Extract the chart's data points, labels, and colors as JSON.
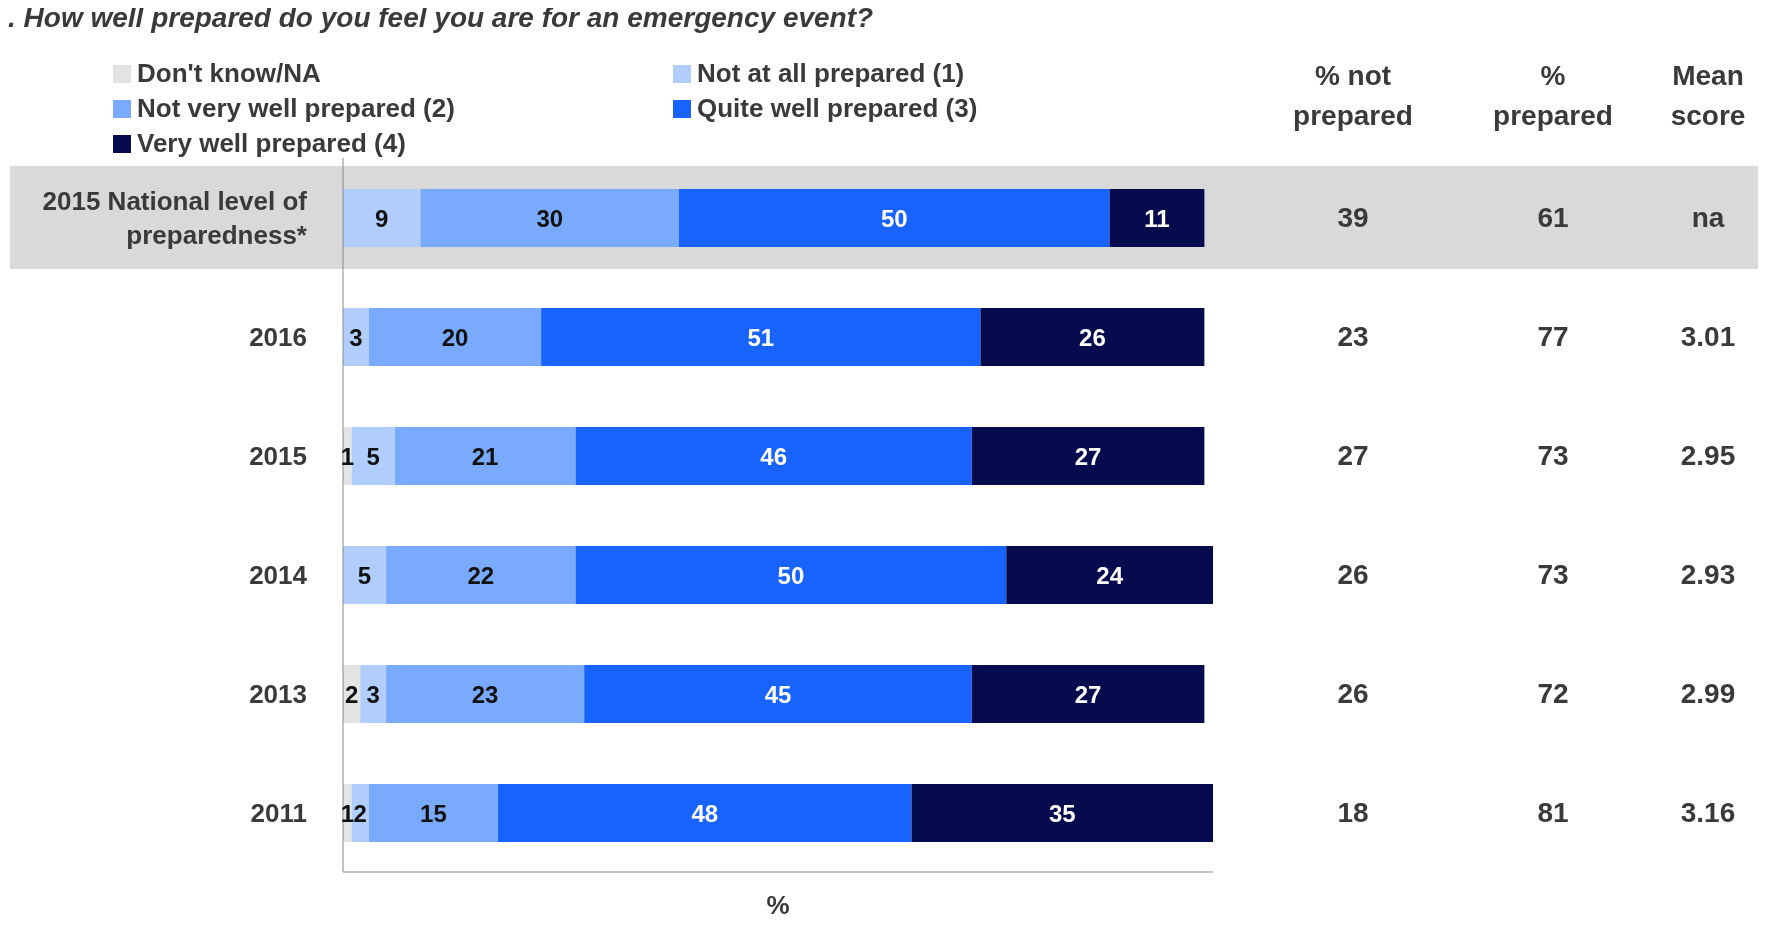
{
  "chart_data": {
    "type": "bar",
    "orientation": "horizontal",
    "stacked": true,
    "title": ". How well prepared do you feel you are for an emergency event?",
    "xlabel": "%",
    "categories": [
      "2015 National level of preparedness*",
      "2016",
      "2015",
      "2014",
      "2013",
      "2011"
    ],
    "series": [
      {
        "name": "Don't know/NA",
        "color": "#e3e3e3",
        "values": [
          null,
          null,
          1,
          null,
          2,
          1
        ]
      },
      {
        "name": "Not at all prepared (1)",
        "color": "#b0cdfc",
        "values": [
          9,
          3,
          5,
          5,
          3,
          2
        ]
      },
      {
        "name": "Not very well prepared (2)",
        "color": "#7aaafc",
        "values": [
          30,
          20,
          21,
          22,
          23,
          15
        ]
      },
      {
        "name": "Quite well prepared (3)",
        "color": "#1763fb",
        "values": [
          50,
          51,
          46,
          50,
          45,
          48
        ]
      },
      {
        "name": "Very well prepared (4)",
        "color": "#050b4c",
        "values": [
          11,
          26,
          27,
          24,
          27,
          35
        ]
      }
    ],
    "data_labels": true,
    "legend": "top",
    "tick_labels": "y",
    "grid": false,
    "annotations": [
      "% not prepared",
      "% prepared",
      "Mean score",
      "39",
      "61",
      "na",
      "23",
      "77",
      "3.01",
      "27",
      "73",
      "2.95",
      "26",
      "73",
      "2.93",
      "26",
      "72",
      "2.99",
      "18",
      "81",
      "3.16"
    ]
  }
}
